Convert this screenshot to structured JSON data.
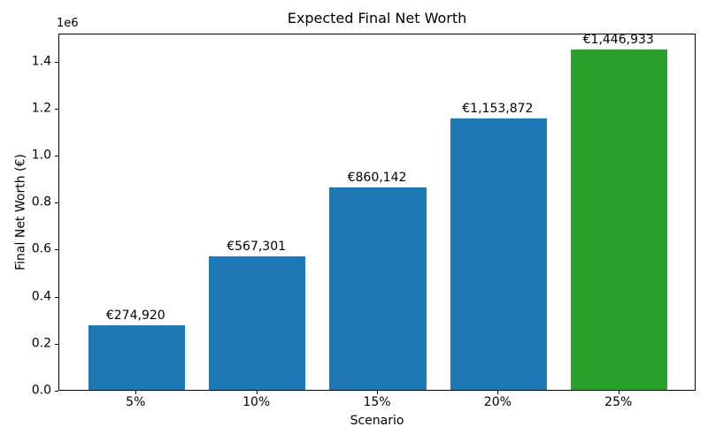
{
  "chart_data": {
    "type": "bar",
    "title": "Expected Final Net Worth",
    "xlabel": "Scenario",
    "ylabel": "Final Net Worth (€)",
    "y_offset_label": "1e6",
    "categories": [
      "5%",
      "10%",
      "15%",
      "20%",
      "25%"
    ],
    "values": [
      274920,
      567301,
      860142,
      1153872,
      1446933
    ],
    "bar_labels": [
      "€274,920",
      "€567,301",
      "€860,142",
      "€1,153,872",
      "€1,446,933"
    ],
    "bar_colors": [
      "#1f77b4",
      "#1f77b4",
      "#1f77b4",
      "#1f77b4",
      "#2ca02c"
    ],
    "default_color": "#1f77b4",
    "highlight_color": "#2ca02c",
    "yticks": [
      0.0,
      0.2,
      0.4,
      0.6,
      0.8,
      1.0,
      1.2,
      1.4
    ],
    "ytick_labels": [
      "0.0",
      "0.2",
      "0.4",
      "0.6",
      "0.8",
      "1.0",
      "1.2",
      "1.4"
    ],
    "ytick_scale": 1000000,
    "ylim": [
      0,
      1519280
    ],
    "xlim": [
      -0.64,
      4.64
    ],
    "bar_width_units": 0.8,
    "grid": false,
    "legend_position": "none"
  }
}
